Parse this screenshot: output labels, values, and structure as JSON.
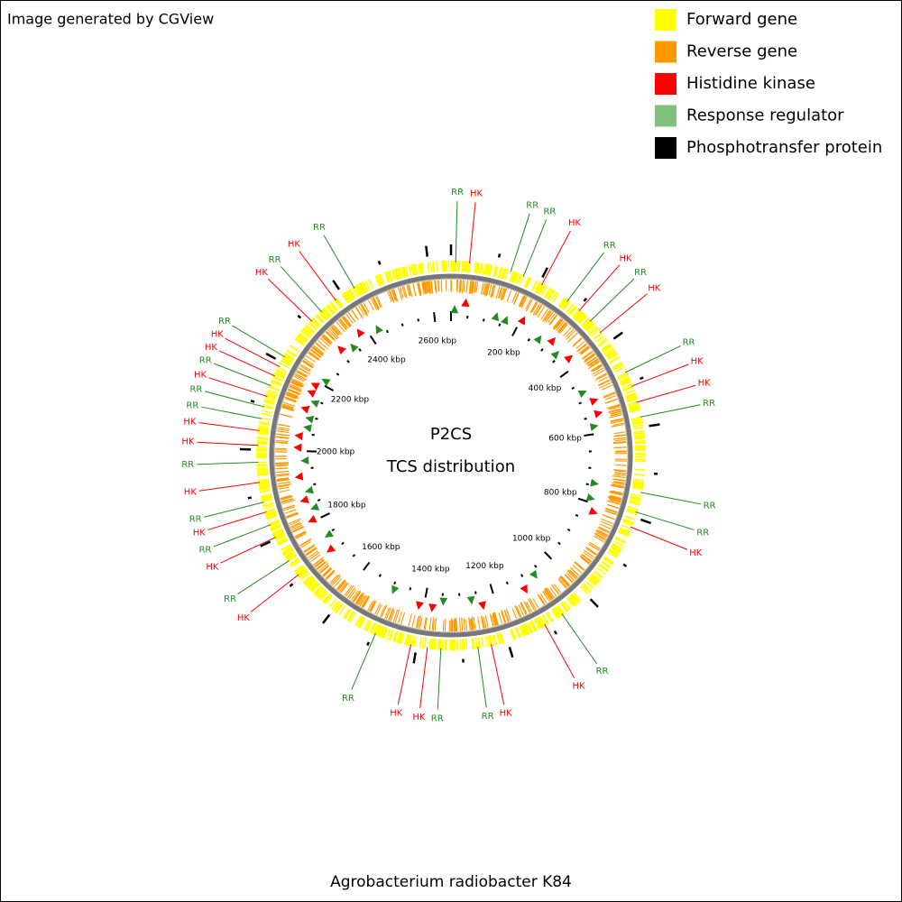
{
  "header": {
    "credit": "Image generated by CGView"
  },
  "legend": [
    {
      "label": "Forward gene",
      "color": "#ffff00"
    },
    {
      "label": "Reverse gene",
      "color": "#ff9900"
    },
    {
      "label": "Histidine kinase",
      "color": "#ff0000"
    },
    {
      "label": "Response regulator",
      "color": "#80c080"
    },
    {
      "label": "Phosphotransfer protein",
      "color": "#000000"
    }
  ],
  "center": {
    "title": "P2CS",
    "subtitle": "TCS distribution"
  },
  "scale_labels": [
    "200 kbp",
    "400 kbp",
    "600 kbp",
    "800 kbp",
    "1000 kbp",
    "1200 kbp",
    "1400 kbp",
    "1600 kbp",
    "1800 kbp",
    "2000 kbp",
    "2200 kbp",
    "2400 kbp",
    "2600 kbp"
  ],
  "callouts": [
    "RR",
    "HK",
    "RR",
    "RR",
    "HK",
    "RR",
    "HK",
    "RR",
    "HK",
    "RR",
    "HK",
    "HK",
    "RR",
    "RR",
    "RR",
    "HK",
    "RR",
    "HK",
    "HK",
    "RR",
    "RR",
    "HK",
    "HK",
    "RR",
    "HK",
    "RR",
    "HK",
    "RR",
    "HK",
    "RR",
    "HK",
    "RR",
    "HK",
    "HK",
    "RR",
    "RR",
    "HK",
    "RR",
    "HK",
    "HK",
    "RR",
    "HK",
    "RR",
    "HK",
    "RR"
  ],
  "callout_colors": {
    "HK": "#ff0000",
    "RR": "#228b22"
  },
  "footer": {
    "organism": "Agrobacterium radiobacter K84"
  }
}
